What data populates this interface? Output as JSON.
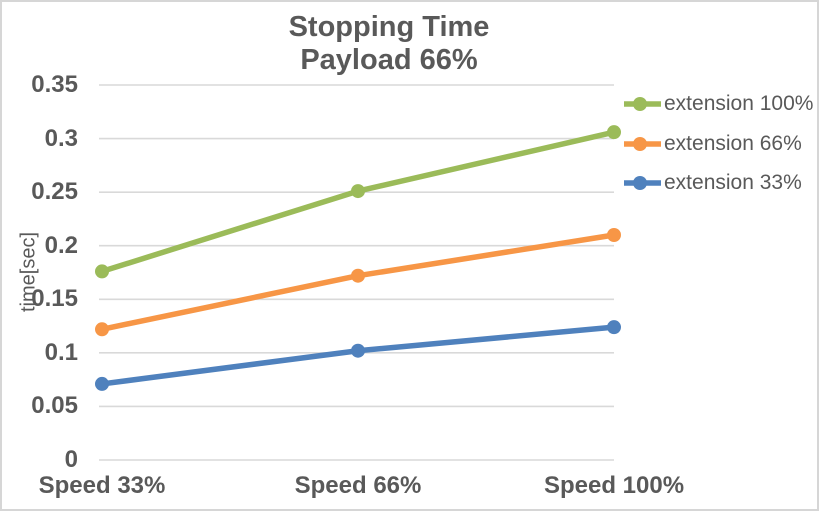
{
  "chart_data": {
    "type": "line",
    "title": "Stopping Time",
    "subtitle": "Payload 66%",
    "xlabel": "",
    "ylabel": "time[sec]",
    "categories": [
      "Speed 33%",
      "Speed 66%",
      "Speed 100%"
    ],
    "series": [
      {
        "name": "extension 100%",
        "color": "#9BBB59",
        "values": [
          0.176,
          0.251,
          0.306
        ]
      },
      {
        "name": "extension 66%",
        "color": "#F79646",
        "values": [
          0.122,
          0.172,
          0.21
        ]
      },
      {
        "name": "extension 33%",
        "color": "#4F81BD",
        "values": [
          0.071,
          0.102,
          0.124
        ]
      }
    ],
    "ylim": [
      0,
      0.35
    ],
    "ytick_step": 0.05,
    "yticks": [
      "0",
      "0.05",
      "0.1",
      "0.15",
      "0.2",
      "0.25",
      "0.3",
      "0.35"
    ],
    "grid": true,
    "legend_position": "right",
    "marker": "circle"
  },
  "colors": {
    "text": "#595959",
    "gridline": "#D9D9D9",
    "border": "#D6D6D6",
    "background": "#FFFFFF"
  }
}
